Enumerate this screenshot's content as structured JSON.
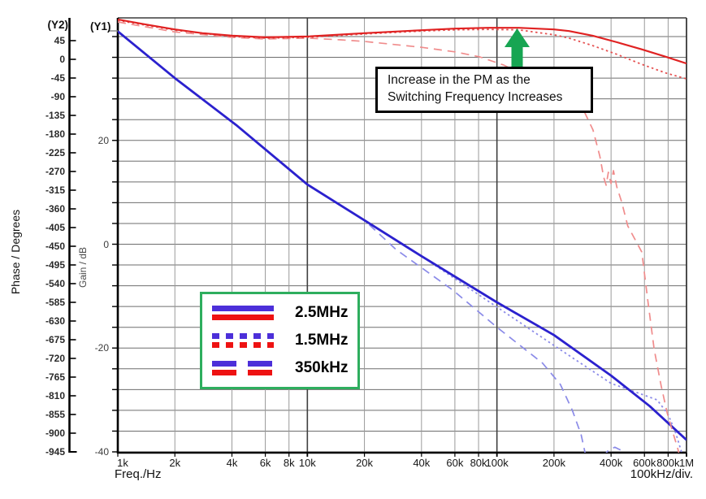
{
  "ui": {
    "y2_axis": {
      "corner_label": "(Y2)",
      "title": "Phase / Degrees",
      "ticks": [
        45,
        0,
        -45,
        -90,
        -135,
        -180,
        -225,
        -270,
        -315,
        -360,
        -405,
        -450,
        -495,
        -540,
        -585,
        -630,
        -675,
        -720,
        -765,
        -810,
        -855,
        -900,
        -945
      ]
    },
    "y1_axis": {
      "corner_label": "(Y1)",
      "title": "Gain / dB",
      "labeled_ticks": [
        20,
        0,
        -20,
        -40
      ]
    },
    "x_axis": {
      "title": "Freq./Hz",
      "right_note": "100kHz/div.",
      "ticks": [
        {
          "label": "1k",
          "f": 1000,
          "major": false
        },
        {
          "label": "2k",
          "f": 2000,
          "major": false
        },
        {
          "label": "4k",
          "f": 4000,
          "major": false
        },
        {
          "label": "6k",
          "f": 6000,
          "major": false
        },
        {
          "label": "8k",
          "f": 8000,
          "major": false
        },
        {
          "label": "10k",
          "f": 10000,
          "major": true
        },
        {
          "label": "20k",
          "f": 20000,
          "major": false
        },
        {
          "label": "40k",
          "f": 40000,
          "major": false
        },
        {
          "label": "60k",
          "f": 60000,
          "major": false
        },
        {
          "label": "80k",
          "f": 80000,
          "major": false
        },
        {
          "label": "100k",
          "f": 100000,
          "major": true
        },
        {
          "label": "200k",
          "f": 200000,
          "major": false
        },
        {
          "label": "400k",
          "f": 400000,
          "major": false
        },
        {
          "label": "600k",
          "f": 600000,
          "major": false
        },
        {
          "label": "800k",
          "f": 800000,
          "major": false
        },
        {
          "label": "1M",
          "f": 1000000,
          "major": true
        }
      ]
    },
    "annotation": {
      "line1": "Increase in the PM as the",
      "line2": "Switching Frequency Increases",
      "arrow_color": "#17a552"
    },
    "legend": {
      "border_color": "#2eae5e",
      "entries": [
        {
          "label": "2.5MHz",
          "style": "solid"
        },
        {
          "label": "1.5MHz",
          "style": "dotted"
        },
        {
          "label": "350kHz",
          "style": "dashed"
        }
      ]
    },
    "colors": {
      "gain_solid": "#2b21ce",
      "gain_light": "#8b8be8",
      "phase_solid": "#e02222",
      "phase_dotted": "#e55050",
      "phase_dashed": "#f08c8c",
      "grid_h": "#6e6e6e",
      "grid_v_minor": "#9a9a9a",
      "grid_v_major": "#3f3f3f",
      "axis": "#000000"
    }
  },
  "chart_data": {
    "type": "line",
    "x_scale": "log",
    "x_label": "Freq./Hz",
    "x_range_hz": [
      1000,
      1000000
    ],
    "y1": {
      "label": "Gain / dB",
      "range": [
        -40,
        40
      ],
      "grid_step_db": 4
    },
    "y2": {
      "label": "Phase / Degrees",
      "range": [
        -945,
        45
      ],
      "tick_step_deg": 45
    },
    "note": "Loop gain and phase vs frequency for three switching frequencies",
    "series": [
      {
        "name": "2.5MHz gain",
        "axis": "y1",
        "style": "solid",
        "color": "#2b21ce",
        "width": 2.8,
        "points": [
          [
            1000,
            41
          ],
          [
            2000,
            32
          ],
          [
            4200,
            23
          ],
          [
            10000,
            11.5
          ],
          [
            20000,
            4.6
          ],
          [
            40000,
            -2.3
          ],
          [
            100000,
            -11.2
          ],
          [
            200000,
            -17.5
          ],
          [
            400000,
            -25.3
          ],
          [
            640000,
            -31.2
          ],
          [
            1000000,
            -37.7
          ]
        ]
      },
      {
        "name": "1.5MHz gain",
        "axis": "y1",
        "style": "dotted",
        "color": "#8b8be8",
        "width": 1.8,
        "points": [
          [
            1000,
            41
          ],
          [
            2000,
            32
          ],
          [
            4200,
            23
          ],
          [
            10000,
            11.5
          ],
          [
            20000,
            4.6
          ],
          [
            40000,
            -2.3
          ],
          [
            100000,
            -12.1
          ],
          [
            200000,
            -19.5
          ],
          [
            400000,
            -26.8
          ],
          [
            580000,
            -28.9
          ],
          [
            700000,
            -30.0
          ],
          [
            800000,
            -32.8
          ],
          [
            880000,
            -36.5
          ],
          [
            950000,
            -40.5
          ]
        ]
      },
      {
        "name": "350kHz gain",
        "axis": "y1",
        "style": "dashed",
        "color": "#8b8be8",
        "width": 1.7,
        "points": [
          [
            1000,
            41
          ],
          [
            2000,
            32
          ],
          [
            4200,
            23
          ],
          [
            10000,
            11.5
          ],
          [
            20000,
            4.6
          ],
          [
            29300,
            -1.0
          ],
          [
            58300,
            -8.8
          ],
          [
            100000,
            -16.0
          ],
          [
            174000,
            -22.9
          ],
          [
            216000,
            -27.0
          ],
          [
            250000,
            -32.0
          ],
          [
            278000,
            -36.7
          ],
          [
            295000,
            -41
          ],
          [
            350000,
            -41.5
          ],
          [
            390000,
            -39.6
          ],
          [
            419000,
            -39.1
          ],
          [
            458000,
            -39.8
          ],
          [
            475000,
            -41
          ],
          [
            490000,
            -42
          ]
        ]
      },
      {
        "name": "2.5MHz phase",
        "axis": "y2",
        "style": "solid",
        "color": "#e02222",
        "width": 2.2,
        "points": [
          [
            1000,
            96
          ],
          [
            1400,
            84
          ],
          [
            2000,
            72
          ],
          [
            2800,
            63
          ],
          [
            4000,
            57
          ],
          [
            6000,
            53
          ],
          [
            10000,
            55
          ],
          [
            20000,
            63
          ],
          [
            40000,
            70
          ],
          [
            60000,
            74
          ],
          [
            90000,
            76
          ],
          [
            130000,
            76
          ],
          [
            200000,
            72
          ],
          [
            240000,
            68
          ],
          [
            320000,
            57
          ],
          [
            430000,
            41
          ],
          [
            580000,
            24
          ],
          [
            780000,
            6
          ],
          [
            1000000,
            -10
          ]
        ]
      },
      {
        "name": "1.5MHz phase",
        "axis": "y2",
        "style": "dotted",
        "color": "#e55050",
        "width": 1.8,
        "points": [
          [
            1000,
            94
          ],
          [
            2000,
            70
          ],
          [
            4000,
            55
          ],
          [
            6000,
            51
          ],
          [
            10000,
            53
          ],
          [
            20000,
            61
          ],
          [
            40000,
            68
          ],
          [
            60000,
            71
          ],
          [
            90000,
            72
          ],
          [
            130000,
            71
          ],
          [
            200000,
            59
          ],
          [
            240000,
            51
          ],
          [
            320000,
            33
          ],
          [
            430000,
            12
          ],
          [
            580000,
            -12
          ],
          [
            780000,
            -33
          ],
          [
            1000000,
            -47
          ]
        ]
      },
      {
        "name": "350kHz phase",
        "axis": "y2",
        "style": "dashed",
        "color": "#f08c8c",
        "width": 1.7,
        "points": [
          [
            1000,
            90
          ],
          [
            2000,
            66
          ],
          [
            4000,
            53
          ],
          [
            6000,
            49
          ],
          [
            10000,
            51
          ],
          [
            15000,
            47
          ],
          [
            20000,
            43
          ],
          [
            27000,
            37
          ],
          [
            40000,
            29
          ],
          [
            60000,
            18
          ],
          [
            81000,
            6
          ],
          [
            109000,
            -14
          ],
          [
            146000,
            -43
          ],
          [
            196000,
            -76
          ],
          [
            240000,
            -98
          ],
          [
            287000,
            -123
          ],
          [
            321000,
            -170
          ],
          [
            349000,
            -233
          ],
          [
            366000,
            -284
          ],
          [
            377000,
            -303
          ],
          [
            387000,
            -272
          ],
          [
            400000,
            -299
          ],
          [
            412000,
            -268
          ],
          [
            429000,
            -307
          ],
          [
            454000,
            -342
          ],
          [
            490000,
            -401
          ],
          [
            581000,
            -464
          ],
          [
            625000,
            -581
          ],
          [
            675000,
            -698
          ],
          [
            735000,
            -786
          ],
          [
            791000,
            -851
          ],
          [
            847000,
            -898
          ],
          [
            902000,
            -939
          ],
          [
            940000,
            -975
          ]
        ]
      }
    ]
  }
}
